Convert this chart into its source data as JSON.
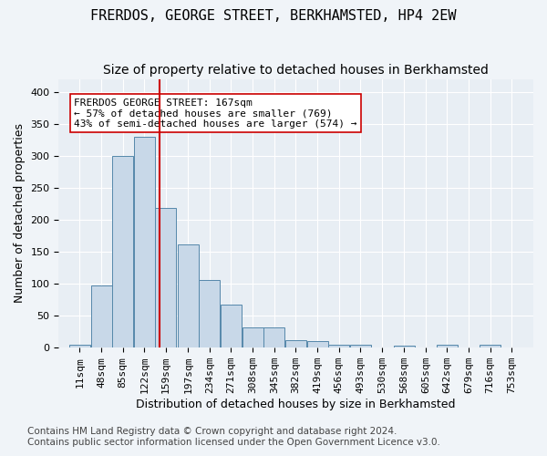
{
  "title": "FRERDOS, GEORGE STREET, BERKHAMSTED, HP4 2EW",
  "subtitle": "Size of property relative to detached houses in Berkhamsted",
  "xlabel": "Distribution of detached houses by size in Berkhamsted",
  "ylabel": "Number of detached properties",
  "bar_counts": [
    4,
    97,
    299,
    330,
    219,
    161,
    106,
    67,
    32,
    32,
    12,
    10,
    5,
    5,
    0,
    3,
    0,
    4,
    0,
    4
  ],
  "bin_labels": [
    "11sqm",
    "48sqm",
    "85sqm",
    "122sqm",
    "159sqm",
    "197sqm",
    "234sqm",
    "271sqm",
    "308sqm",
    "345sqm",
    "382sqm",
    "419sqm",
    "456sqm",
    "493sqm",
    "530sqm",
    "568sqm",
    "605sqm",
    "642sqm",
    "679sqm",
    "716sqm",
    "753sqm"
  ],
  "bin_edges": [
    11,
    48,
    85,
    122,
    159,
    197,
    234,
    271,
    308,
    345,
    382,
    419,
    456,
    493,
    530,
    568,
    605,
    642,
    679,
    716,
    753
  ],
  "bar_color": "#c8d8e8",
  "bar_edge_color": "#5588aa",
  "property_size": 167,
  "property_line_color": "#cc0000",
  "annotation_text": "FRERDOS GEORGE STREET: 167sqm\n← 57% of detached houses are smaller (769)\n43% of semi-detached houses are larger (574) →",
  "annotation_box_color": "#ffffff",
  "annotation_box_edge": "#cc0000",
  "ylim": [
    0,
    420
  ],
  "yticks": [
    0,
    50,
    100,
    150,
    200,
    250,
    300,
    350,
    400
  ],
  "background_color": "#e8eef4",
  "grid_color": "#ffffff",
  "footer_line1": "Contains HM Land Registry data © Crown copyright and database right 2024.",
  "footer_line2": "Contains public sector information licensed under the Open Government Licence v3.0.",
  "title_fontsize": 11,
  "subtitle_fontsize": 10,
  "axis_label_fontsize": 9,
  "tick_fontsize": 8,
  "annotation_fontsize": 8,
  "footer_fontsize": 7.5
}
